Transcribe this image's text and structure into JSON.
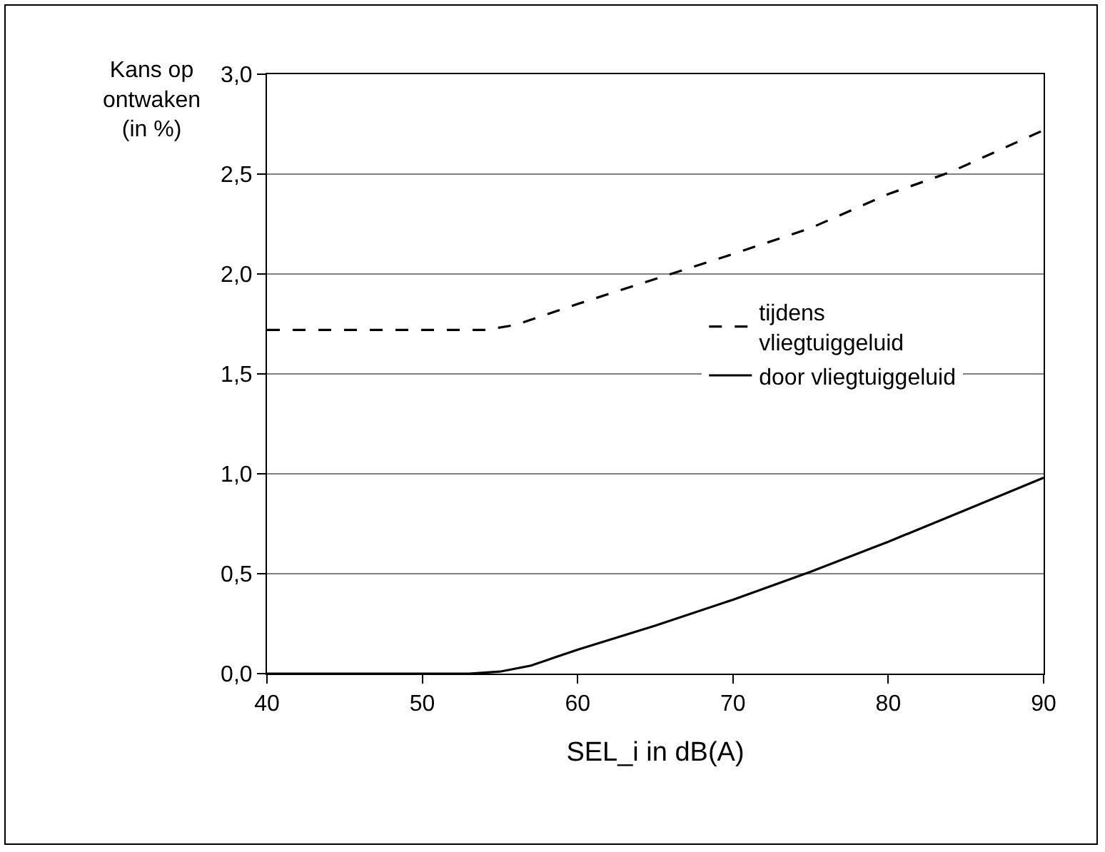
{
  "chart_data": {
    "type": "line",
    "xlabel": "SEL_i in dB(A)",
    "ylabel": "Kans op\nontwaken\n(in %)",
    "series": [
      {
        "name": "tijdens\nvliegtuiggeluid",
        "color": "#000000",
        "line_style": "dashed",
        "x": [
          40,
          54,
          56,
          60,
          66,
          70,
          75,
          80,
          84,
          90
        ],
        "values": [
          1.72,
          1.72,
          1.745,
          1.85,
          2.0,
          2.1,
          2.23,
          2.4,
          2.51,
          2.72
        ]
      },
      {
        "name": "door vliegtuiggeluid",
        "color": "#000000",
        "line_style": "solid",
        "x": [
          40,
          53,
          55,
          57,
          58.5,
          60,
          65,
          70,
          75,
          80,
          85,
          90
        ],
        "values": [
          0,
          0,
          0.01,
          0.04,
          0.08,
          0.12,
          0.24,
          0.37,
          0.51,
          0.66,
          0.82,
          0.98
        ]
      }
    ],
    "xlim": [
      40,
      90
    ],
    "xticks": [
      40,
      50,
      60,
      70,
      80,
      90
    ],
    "ylim": [
      0,
      3
    ],
    "yticks": [
      {
        "value": 0,
        "label": "0,0"
      },
      {
        "value": 0.5,
        "label": "0,5"
      },
      {
        "value": 1,
        "label": "1,0"
      },
      {
        "value": 1.5,
        "label": "1,5"
      },
      {
        "value": 2,
        "label": "2,0"
      },
      {
        "value": 2.5,
        "label": "2,5"
      },
      {
        "value": 3,
        "label": "3,0"
      }
    ],
    "grid": "y",
    "legend": "right",
    "marker": "none"
  }
}
